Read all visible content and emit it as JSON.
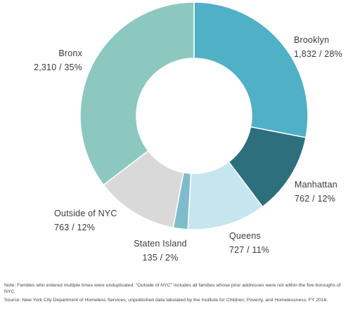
{
  "chart_data": {
    "type": "pie",
    "donut": true,
    "title": "",
    "slices": [
      {
        "name": "Brooklyn",
        "value": 1832,
        "percent": 28,
        "label_value": "1,832 / 28%",
        "color": "#4fb0c6"
      },
      {
        "name": "Manhattan",
        "value": 762,
        "percent": 12,
        "label_value": "762 / 12%",
        "color": "#2e6f7d"
      },
      {
        "name": "Queens",
        "value": 727,
        "percent": 11,
        "label_value": "727 / 11%",
        "color": "#c6e6ef"
      },
      {
        "name": "Staten Island",
        "value": 135,
        "percent": 2,
        "label_value": "135 / 2%",
        "color": "#7fbccb"
      },
      {
        "name": "Outside of NYC",
        "value": 763,
        "percent": 12,
        "label_value": "763 / 12%",
        "color": "#d9d9d9"
      },
      {
        "name": "Bronx",
        "value": 2310,
        "percent": 35,
        "label_value": "2,310 / 35%",
        "color": "#8cc8bf"
      }
    ]
  },
  "notes": {
    "note": "Note: Families who entered multiple times were unduplicated. \"Outside of NYC\" includes all families whose prior addresses were not within the five boroughs of NYC.",
    "source": "Source: New York City Department of Homeless Services, unpublished data tabulated by the Institute for Children, Poverty, and Homelessness, FY 2016."
  }
}
